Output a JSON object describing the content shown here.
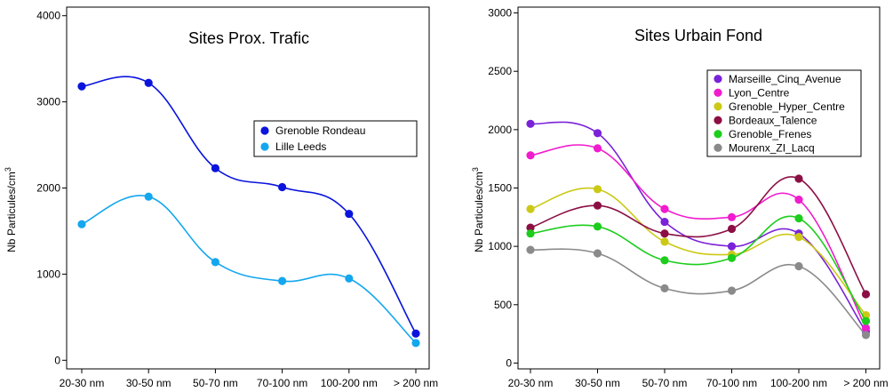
{
  "chart_data": [
    {
      "type": "line",
      "title": "Sites Prox. Trafic",
      "xlabel": "",
      "ylabel": "Nb Particules/cm",
      "ylabel_sup": "3",
      "categories": [
        "20-30 nm",
        "30-50 nm",
        "50-70 nm",
        "70-100 nm",
        "100-200 nm",
        "> 200 nm"
      ],
      "ylim": [
        -100,
        4100
      ],
      "yticks": [
        "0",
        "1000",
        "2000",
        "3000",
        "4000"
      ],
      "ytick_values": [
        0,
        1000,
        2000,
        3000,
        4000
      ],
      "smooth": true,
      "legend_position": "right-middle",
      "series": [
        {
          "name": "Grenoble Rondeau",
          "color": "#0a14dc",
          "values": [
            3180,
            3220,
            2230,
            2010,
            1700,
            310
          ]
        },
        {
          "name": "Lille Leeds",
          "color": "#14a7ef",
          "values": [
            1580,
            1900,
            1140,
            920,
            950,
            200
          ]
        }
      ]
    },
    {
      "type": "line",
      "title": "Sites Urbain Fond",
      "xlabel": "",
      "ylabel": "Nb Particules/cm",
      "ylabel_sup": "3",
      "categories": [
        "20-30 nm",
        "30-50 nm",
        "50-70 nm",
        "70-100 nm",
        "100-200 nm",
        "> 200 nm"
      ],
      "ylim": [
        -50,
        3050
      ],
      "yticks": [
        "0",
        "500",
        "1000",
        "1500",
        "2000",
        "2500",
        "3000"
      ],
      "ytick_values": [
        0,
        500,
        1000,
        1500,
        2000,
        2500,
        3000
      ],
      "smooth": true,
      "legend_position": "top-right",
      "series": [
        {
          "name": "Marseille_Cinq_Avenue",
          "color": "#7a22d8",
          "values": [
            2050,
            1970,
            1210,
            1000,
            1110,
            270
          ]
        },
        {
          "name": "Lyon_Centre",
          "color": "#f01ccd",
          "values": [
            1780,
            1840,
            1320,
            1250,
            1400,
            300
          ]
        },
        {
          "name": "Grenoble_Hyper_Centre",
          "color": "#cbc916",
          "values": [
            1320,
            1490,
            1040,
            930,
            1080,
            410
          ]
        },
        {
          "name": "Bordeaux_Talence",
          "color": "#8b0f44",
          "values": [
            1160,
            1350,
            1110,
            1150,
            1580,
            590
          ]
        },
        {
          "name": "Grenoble_Frenes",
          "color": "#1ccd1c",
          "values": [
            1110,
            1170,
            880,
            900,
            1240,
            360
          ]
        },
        {
          "name": "Mourenx_ZI_Lacq",
          "color": "#8a8a8a",
          "values": [
            970,
            940,
            640,
            620,
            830,
            240
          ]
        }
      ]
    }
  ]
}
